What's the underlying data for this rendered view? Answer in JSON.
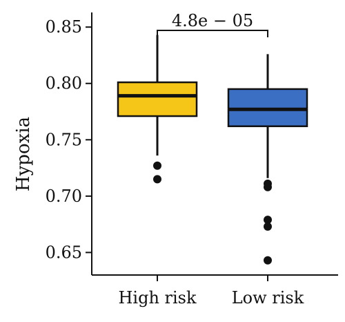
{
  "chart_data": {
    "type": "box",
    "ylabel": "Hypoxia",
    "xlabel": "",
    "ylim": [
      0.63,
      0.863
    ],
    "yticks": [
      0.65,
      0.7,
      0.75,
      0.8,
      0.85
    ],
    "ytick_labels": [
      "0.65",
      "0.70",
      "0.75",
      "0.80",
      "0.85"
    ],
    "grid": false,
    "legend": "none",
    "categories": [
      "High risk",
      "Low risk"
    ],
    "series": [
      {
        "category": "High risk",
        "color": "#F5C518",
        "whisker_low": 0.736,
        "q1": 0.771,
        "median": 0.789,
        "q3": 0.801,
        "whisker_high": 0.843,
        "outliers": [
          0.727,
          0.715
        ]
      },
      {
        "category": "Low risk",
        "color": "#3A6FC4",
        "whisker_low": 0.716,
        "q1": 0.762,
        "median": 0.777,
        "q3": 0.795,
        "whisker_high": 0.826,
        "outliers": [
          0.711,
          0.708,
          0.679,
          0.673,
          0.643
        ]
      }
    ],
    "annotations": [
      {
        "text": "4.8e − 05",
        "between": [
          "High risk",
          "Low risk"
        ]
      }
    ]
  }
}
